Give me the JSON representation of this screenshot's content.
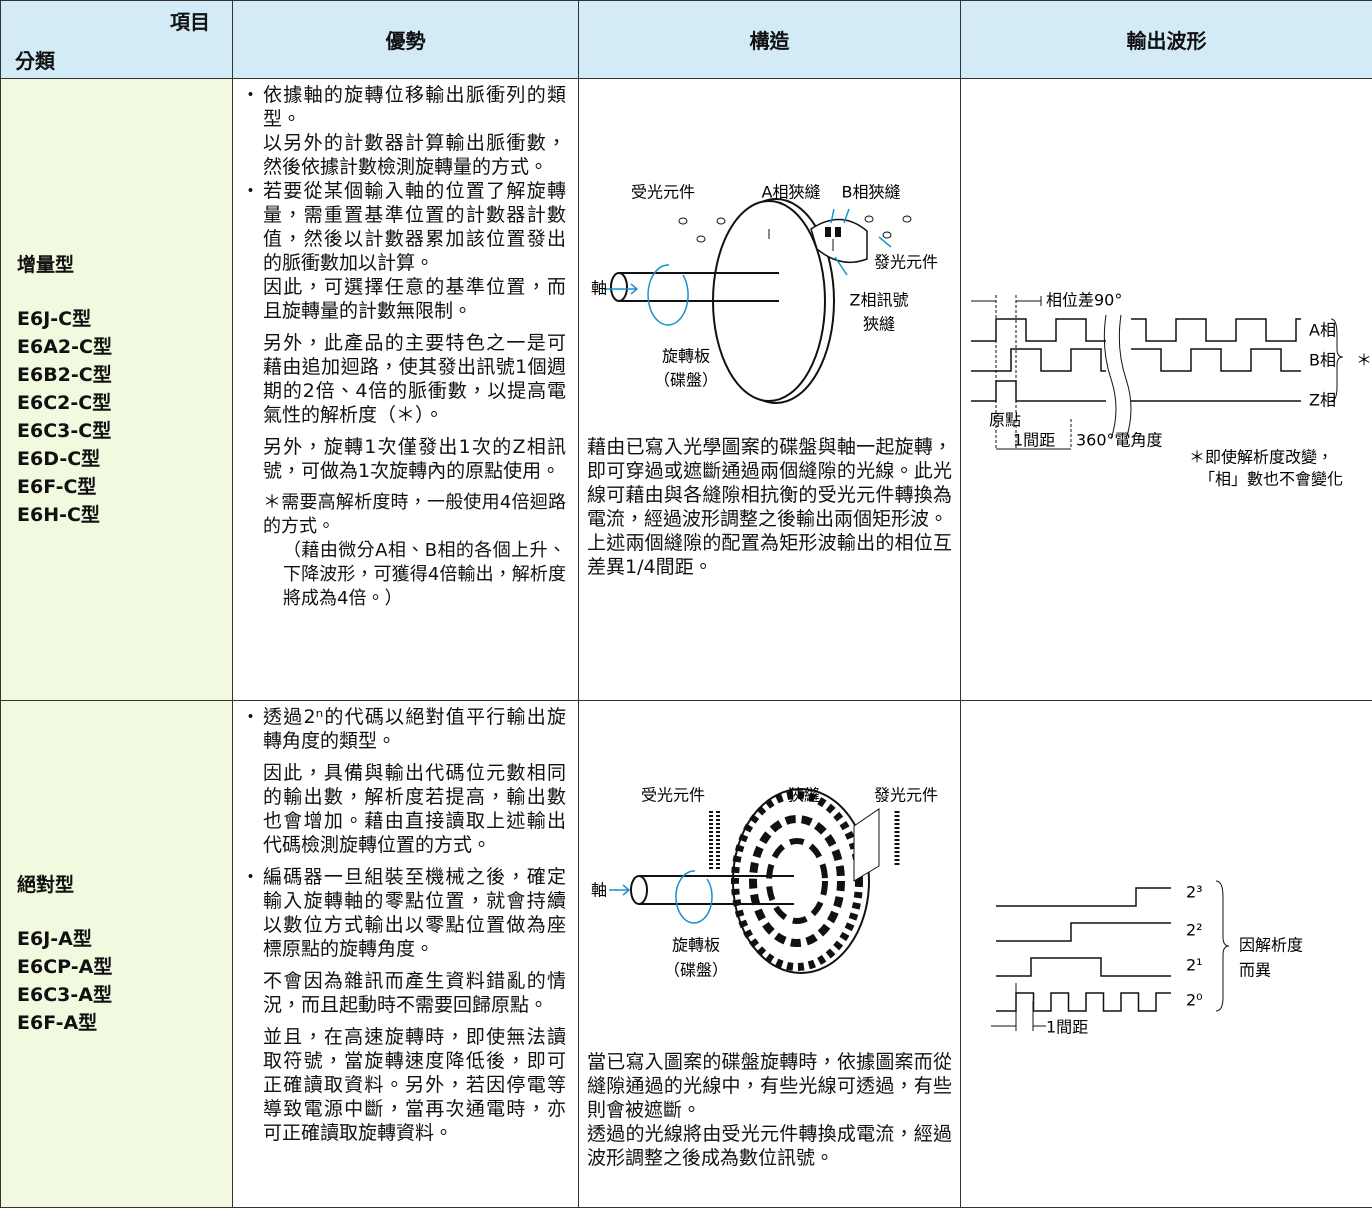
{
  "header": {
    "item": "項目",
    "category": "分類",
    "columns": [
      "優勢",
      "構造",
      "輸出波形"
    ]
  },
  "rows": [
    {
      "category": "增量型",
      "models": [
        "E6J-C型",
        "E6A2-C型",
        "E6B2-C型",
        "E6C2-C型",
        "E6C3-C型",
        "E6D-C型",
        "E6F-C型",
        "E6H-C型"
      ],
      "advantages": [
        {
          "bullet": "依據軸的旋轉位移輸出脈衝列的類型。",
          "text": "以另外的計數器計算輸出脈衝數，然後依據計數檢測旋轉量的方式。"
        },
        {
          "bullet": "若要從某個輸入軸的位置了解旋轉量，需重置基準位置的計數器計數值，然後以計數器累加該位置發出的脈衝數加以計算。",
          "text": "因此，可選擇任意的基準位置，而且旋轉量的計數無限制。"
        },
        {
          "text": "另外，此產品的主要特色之一是可藉由追加迴路，使其發出訊號1個週期的2倍、4倍的脈衝數，以提高電氣性的解析度（＊）。"
        },
        {
          "text": "另外，旋轉1次僅發出1次的Z相訊號，可做為1次旋轉內的原點使用。"
        },
        {
          "note": "＊需要高解析度時，一般使用4倍迴路的方式。",
          "text": "（藉由微分A相、B相的各個上升、下降波形，可獲得4倍輸出，解析度將成為4倍。）"
        }
      ],
      "structure": {
        "labels": {
          "receiver": "受光元件",
          "a_slit": "A相狹縫",
          "b_slit": "B相狹縫",
          "emitter": "發光元件",
          "shaft": "軸",
          "z_slit_1": "Z相訊號",
          "z_slit_2": "狹縫",
          "disk_1": "旋轉板",
          "disk_2": "（碟盤）"
        },
        "description": [
          "藉由已寫入光學圖案的碟盤與軸一起旋轉，即可穿過或遮斷通過兩個縫隙的光線。此光線可藉由與各縫隙相抗衡的受光元件轉換為電流，經過波形調整之後輸出兩個矩形波。",
          "上述兩個縫隙的配置為矩形波輸出的相位互差異1/4間距。"
        ]
      },
      "waveform": {
        "phase_diff": "相位差90°",
        "a": "A相",
        "b": "B相",
        "z": "Z相",
        "star": "＊",
        "origin": "原點",
        "pitch": "1間距",
        "angle": "360°電角度",
        "note_1": "＊即使解析度改變，",
        "note_2": "「相」數也不會變化"
      }
    },
    {
      "category": "絕對型",
      "models": [
        "E6J-A型",
        "E6CP-A型",
        "E6C3-A型",
        "E6F-A型"
      ],
      "advantages": [
        {
          "bullet": "透過2ⁿ的代碼以絕對值平行輸出旋轉角度的類型。"
        },
        {
          "text": "因此，具備與輸出代碼位元數相同的輸出數，解析度若提高，輸出數也會增加。藉由直接讀取上述輸出代碼檢測旋轉位置的方式。"
        },
        {
          "bullet": "編碼器一旦組裝至機械之後，確定輸入旋轉軸的零點位置，就會持續以數位方式輸出以零點位置做為座標原點的旋轉角度。"
        },
        {
          "text": "不會因為雜訊而產生資料錯亂的情況，而且起動時不需要回歸原點。"
        },
        {
          "text": "並且，在高速旋轉時，即使無法讀取符號，當旋轉速度降低後，即可正確讀取資料。另外，若因停電等導致電源中斷，當再次通電時，亦可正確讀取旋轉資料。"
        }
      ],
      "structure": {
        "labels": {
          "receiver": "受光元件",
          "slit": "狹縫",
          "emitter": "發光元件",
          "shaft": "軸",
          "disk_1": "旋轉板",
          "disk_2": "（碟盤）"
        },
        "description": [
          "當已寫入圖案的碟盤旋轉時，依據圖案而從縫隙通過的光線中，有些光線可透過，有些則會被遮斷。",
          "透過的光線將由受光元件轉換成電流，經過波形調整之後成為數位訊號。"
        ]
      },
      "waveform": {
        "bits": [
          "2³",
          "2²",
          "2¹",
          "2⁰"
        ],
        "note_1": "因解析度",
        "note_2": "而異",
        "pitch": "1間距"
      }
    }
  ]
}
